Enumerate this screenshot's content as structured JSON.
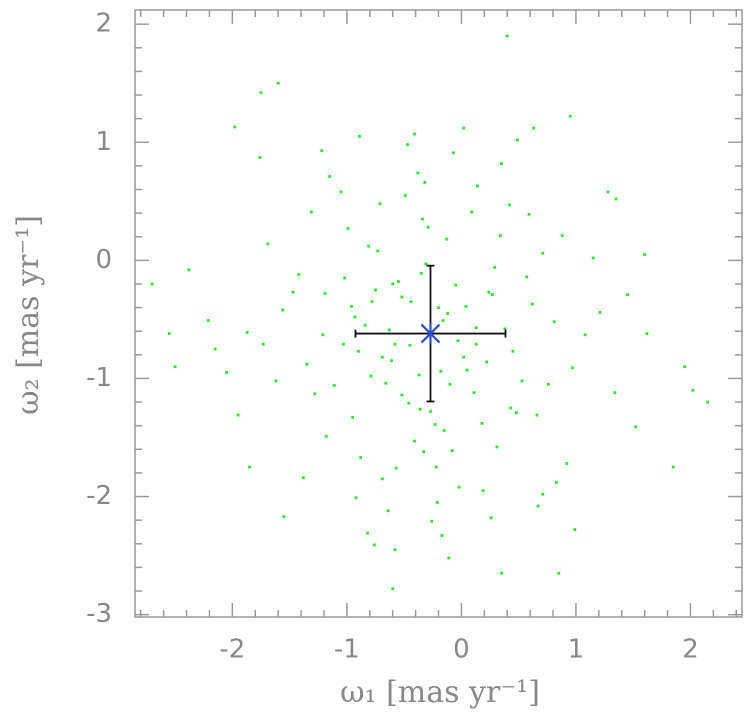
{
  "chart_data": {
    "type": "scatter",
    "xlabel": "ω₁ [mas yr⁻¹]",
    "ylabel": "ω₂ [mas yr⁻¹]",
    "xlim": [
      -2.85,
      2.45
    ],
    "ylim": [
      -3.02,
      2.12
    ],
    "xticks": [
      -2,
      -1,
      0,
      1,
      2
    ],
    "yticks": [
      -3,
      -2,
      -1,
      0,
      1,
      2
    ],
    "xminorticks": [
      -2.8,
      -2.6,
      -2.4,
      -2.2,
      -1.8,
      -1.6,
      -1.4,
      -1.2,
      -0.8,
      -0.6,
      -0.4,
      -0.2,
      0.2,
      0.4,
      0.6,
      0.8,
      1.2,
      1.4,
      1.6,
      1.8,
      2.2,
      2.4
    ],
    "yminorticks": [
      -2.8,
      -2.6,
      -2.4,
      -2.2,
      -1.8,
      -1.6,
      -1.4,
      -1.2,
      -0.8,
      -0.6,
      -0.4,
      -0.2,
      0.2,
      0.4,
      0.6,
      0.8,
      1.2,
      1.4,
      1.6,
      1.8
    ],
    "color": "#22ee22",
    "x": [
      -0.52,
      0.11,
      -0.93,
      0.34,
      -0.18,
      -1.21,
      0.62,
      -0.41,
      -0.73,
      0.02,
      -0.27,
      -0.05,
      -0.66,
      0.45,
      -1.02,
      -0.34,
      0.18,
      -0.58,
      -0.12,
      0.81,
      -1.35,
      -0.81,
      0.27,
      -0.46,
      0.53,
      -0.22,
      -0.95,
      0.09,
      -0.63,
      -0.31,
      0.71,
      -1.56,
      -0.08,
      -0.75,
      0.38,
      -0.37,
      -1.11,
      0.22,
      -0.49,
      -0.15,
      -0.88,
      0.97,
      -0.29,
      -1.42,
      0.14,
      -0.69,
      0.48,
      -0.02,
      -1.73,
      -0.55,
      0.31,
      -0.99,
      -0.21,
      0.66,
      -0.38,
      -1.28,
      -0.61,
      0.04,
      -0.84,
      0.88,
      -0.13,
      -1.62,
      0.57,
      -0.44,
      -0.92,
      0.19,
      -0.71,
      -0.26,
      1.08,
      -1.05,
      -0.36,
      0.42,
      -1.18,
      -0.57,
      0.76,
      -0.07,
      -1.47,
      -0.79,
      0.26,
      -0.32,
      1.21,
      -1.87,
      -0.17,
      0.59,
      -0.64,
      -1.31,
      0.13,
      -0.47,
      -0.96,
      1.34,
      -2.05,
      0.92,
      -0.58,
      -1.15,
      0.35,
      -0.23,
      -0.82,
      1.15,
      -1.69,
      0.67,
      -1.95,
      1.45,
      -0.41,
      -2.21,
      0.83,
      -1.38,
      1.52,
      -0.11,
      -1.22,
      0.49,
      -2.38,
      1.62,
      -0.76,
      1.28,
      -1.76,
      0.02,
      -1.55,
      0.99,
      -0.89,
      0.71,
      -1.6,
      0.4,
      -1.75,
      0.95,
      -2.7,
      2.15,
      0.35,
      -0.6,
      2.02,
      -1.85,
      1.85,
      -2.5,
      1.6,
      0.85,
      -2.15,
      1.95,
      -2.55,
      1.35,
      -1.98,
      0.63,
      -0.45,
      -0.16,
      0.05,
      -0.69,
      -0.35,
      -0.03,
      -0.52,
      -0.9,
      0.24,
      -0.27,
      -0.6,
      0.13,
      -1.03,
      -0.2,
      0.43,
      -0.78,
      -0.33,
      0.29,
      -1.19,
      -0.1
    ],
    "values": [
      -0.31,
      -1.12,
      -0.48,
      0.21,
      -0.94,
      -0.63,
      -0.37,
      -1.53,
      0.08,
      -0.82,
      -0.62,
      -0.21,
      -1.04,
      -0.77,
      -0.15,
      0.35,
      -1.38,
      -0.71,
      -0.45,
      -0.52,
      -0.88,
      0.12,
      -0.29,
      -1.21,
      -1.02,
      -1.75,
      -1.33,
      0.41,
      -0.59,
      -0.03,
      0.06,
      -0.42,
      -1.61,
      -0.25,
      -0.58,
      -0.97,
      -1.06,
      -0.86,
      0.55,
      -1.44,
      -1.67,
      -0.91,
      0.28,
      -0.12,
      0.63,
      -1.85,
      -1.29,
      -1.92,
      -0.71,
      -0.18,
      -1.58,
      0.27,
      -2.05,
      -1.31,
      0.74,
      -1.13,
      -0.85,
      -0.39,
      -0.55,
      0.21,
      0.18,
      -1.02,
      -0.14,
      -0.35,
      -2.01,
      -1.95,
      0.48,
      -2.21,
      -0.63,
      0.58,
      -1.26,
      0.47,
      -1.49,
      -1.76,
      -1.05,
      0.91,
      -0.27,
      -0.98,
      -2.18,
      0.66,
      -0.44,
      -0.61,
      -2.33,
      0.39,
      -2.12,
      0.41,
      -0.71,
      0.98,
      -0.39,
      -1.12,
      -0.95,
      -1.72,
      -2.45,
      0.71,
      0.82,
      -1.39,
      -2.31,
      0.02,
      0.14,
      -2.08,
      -1.31,
      -0.29,
      1.07,
      -0.51,
      -1.88,
      -1.84,
      -1.41,
      -2.52,
      0.93,
      1.02,
      -0.08,
      -0.62,
      -2.41,
      0.58,
      0.87,
      1.12,
      -2.17,
      -2.28,
      1.05,
      -1.98,
      1.5,
      1.9,
      1.42,
      1.22,
      -0.2,
      -1.2,
      -2.65,
      -2.78,
      -1.1,
      -1.75,
      -1.75,
      -0.9,
      0.05,
      -2.65,
      -0.75,
      -0.9,
      -0.62,
      0.52,
      1.13,
      1.12,
      -0.72,
      -0.51,
      -0.93,
      -0.82,
      -0.11,
      -0.68,
      -1.14,
      -0.77,
      -0.27,
      -1.28,
      -0.2,
      -0.57,
      -0.71,
      -0.4,
      -1.25,
      -0.35,
      -1.62,
      -0.06,
      -0.28,
      -1.05
    ],
    "mean": {
      "x": -0.27,
      "y": -0.62,
      "xerr": 0.655,
      "yerr": 0.575,
      "color": "#2a4fd0",
      "errcolor": "#111111"
    }
  }
}
